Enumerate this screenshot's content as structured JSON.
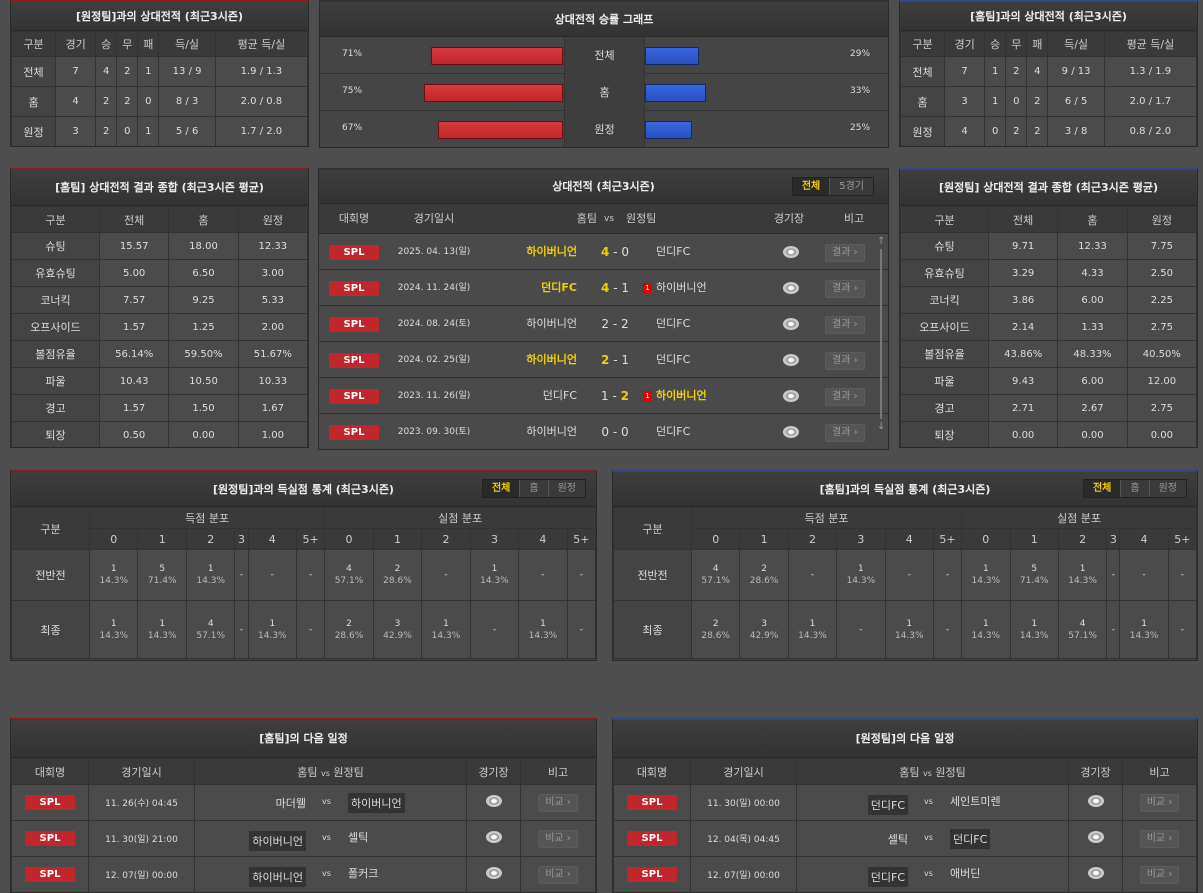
{
  "h2h_left": {
    "title": "[원정팀]과의 상대전적 (최근3시즌)",
    "headers": [
      "구분",
      "경기",
      "승",
      "무",
      "패",
      "득/실",
      "평균 득/실"
    ],
    "rows": [
      [
        "전체",
        "7",
        "4",
        "2",
        "1",
        "13 / 9",
        "1.9 / 1.3"
      ],
      [
        "홈",
        "4",
        "2",
        "2",
        "0",
        "8 / 3",
        "2.0 / 0.8"
      ],
      [
        "원정",
        "3",
        "2",
        "0",
        "1",
        "5 / 6",
        "1.7 / 2.0"
      ]
    ]
  },
  "graph": {
    "title": "상대전적 승률 그래프",
    "home_color": "#c0262b",
    "away_color": "#2a50c0",
    "rows": [
      {
        "label": "전체",
        "home": "71%",
        "away": "29%",
        "home_pct": 71,
        "away_pct": 29
      },
      {
        "label": "홈",
        "home": "75%",
        "away": "33%",
        "home_pct": 75,
        "away_pct": 33
      },
      {
        "label": "원정",
        "home": "67%",
        "away": "25%",
        "home_pct": 67,
        "away_pct": 25
      }
    ]
  },
  "h2h_right": {
    "title": "[홈팀]과의 상대전적 (최근3시즌)",
    "headers": [
      "구분",
      "경기",
      "승",
      "무",
      "패",
      "득/실",
      "평균 득/실"
    ],
    "rows": [
      [
        "전체",
        "7",
        "1",
        "2",
        "4",
        "9 / 13",
        "1.3 / 1.9"
      ],
      [
        "홈",
        "3",
        "1",
        "0",
        "2",
        "6 / 5",
        "2.0 / 1.7"
      ],
      [
        "원정",
        "4",
        "0",
        "2",
        "2",
        "3 / 8",
        "0.8 / 2.0"
      ]
    ]
  },
  "summary_left": {
    "title": "[홈팀] 상대전적 결과 종합 (최근3시즌 평균)",
    "headers": [
      "구분",
      "전체",
      "홈",
      "원정"
    ],
    "rows": [
      [
        "슈팅",
        "15.57",
        "18.00",
        "12.33"
      ],
      [
        "유효슈팅",
        "5.00",
        "6.50",
        "3.00"
      ],
      [
        "코너킥",
        "7.57",
        "9.25",
        "5.33"
      ],
      [
        "오프사이드",
        "1.57",
        "1.25",
        "2.00"
      ],
      [
        "볼점유율",
        "56.14%",
        "59.50%",
        "51.67%"
      ],
      [
        "파울",
        "10.43",
        "10.50",
        "10.33"
      ],
      [
        "경고",
        "1.57",
        "1.50",
        "1.67"
      ],
      [
        "퇴장",
        "0.50",
        "0.00",
        "1.00"
      ]
    ]
  },
  "summary_right": {
    "title": "[원정팀] 상대전적 결과 종합 (최근3시즌 평균)",
    "headers": [
      "구분",
      "전체",
      "홈",
      "원정"
    ],
    "rows": [
      [
        "슈팅",
        "9.71",
        "12.33",
        "7.75"
      ],
      [
        "유효슈팅",
        "3.29",
        "4.33",
        "2.50"
      ],
      [
        "코너킥",
        "3.86",
        "6.00",
        "2.25"
      ],
      [
        "오프사이드",
        "2.14",
        "1.33",
        "2.75"
      ],
      [
        "볼점유율",
        "43.86%",
        "48.33%",
        "40.50%"
      ],
      [
        "파울",
        "9.43",
        "6.00",
        "12.00"
      ],
      [
        "경고",
        "2.71",
        "2.67",
        "2.75"
      ],
      [
        "퇴장",
        "0.00",
        "0.00",
        "0.00"
      ]
    ]
  },
  "matches": {
    "title": "상대전적 (최근3시즌)",
    "tabs": [
      "전체",
      "5경기"
    ],
    "headers": {
      "league": "대회명",
      "date": "경기일시",
      "home": "홈팀",
      "vs": "vs",
      "away": "원정팀",
      "stadium": "경기장",
      "note": "비고"
    },
    "rows": [
      {
        "league": "SPL",
        "date": "2025. 04. 13(일)",
        "home": "하이버니언",
        "hs": "4",
        "dash": "-",
        "as": "0",
        "away": "던디FC",
        "winner": "home",
        "redcard": "",
        "button": "결과"
      },
      {
        "league": "SPL",
        "date": "2024. 11. 24(일)",
        "home": "던디FC",
        "hs": "4",
        "dash": "-",
        "as": "1",
        "away": "하이버니언",
        "winner": "home",
        "redcard": "1",
        "button": "결과"
      },
      {
        "league": "SPL",
        "date": "2024. 08. 24(토)",
        "home": "하이버니언",
        "hs": "2",
        "dash": "-",
        "as": "2",
        "away": "던디FC",
        "winner": "",
        "redcard": "",
        "button": "결과"
      },
      {
        "league": "SPL",
        "date": "2024. 02. 25(일)",
        "home": "하이버니언",
        "hs": "2",
        "dash": "-",
        "as": "1",
        "away": "던디FC",
        "winner": "home",
        "redcard": "",
        "button": "결과"
      },
      {
        "league": "SPL",
        "date": "2023. 11. 26(일)",
        "home": "던디FC",
        "hs": "1",
        "dash": "-",
        "as": "2",
        "away": "하이버니언",
        "winner": "away",
        "redcard": "1",
        "button": "결과"
      },
      {
        "league": "SPL",
        "date": "2023. 09. 30(토)",
        "home": "하이버니언",
        "hs": "0",
        "dash": "-",
        "as": "0",
        "away": "던디FC",
        "winner": "",
        "redcard": "",
        "button": "결과"
      }
    ]
  },
  "goals_left": {
    "title": "[원정팀]과의 득실점 통계 (최근3시즌)",
    "tabs": [
      "전체",
      "홈",
      "원정"
    ],
    "col_label": "구분",
    "groups": [
      "득점 분포",
      "실점 분포"
    ],
    "cols": [
      "0",
      "1",
      "2",
      "3",
      "4",
      "5+",
      "0",
      "1",
      "2",
      "3",
      "4",
      "5+"
    ],
    "rows": [
      {
        "label": "전반전",
        "cells": [
          [
            "1",
            "14.3%"
          ],
          [
            "5",
            "71.4%"
          ],
          [
            "1",
            "14.3%"
          ],
          [
            "-",
            ""
          ],
          [
            "-",
            ""
          ],
          [
            "-",
            ""
          ],
          [
            "4",
            "57.1%"
          ],
          [
            "2",
            "28.6%"
          ],
          [
            "-",
            ""
          ],
          [
            "1",
            "14.3%"
          ],
          [
            "-",
            ""
          ],
          [
            "-",
            ""
          ]
        ]
      },
      {
        "label": "최종",
        "cells": [
          [
            "1",
            "14.3%"
          ],
          [
            "1",
            "14.3%"
          ],
          [
            "4",
            "57.1%"
          ],
          [
            "-",
            ""
          ],
          [
            "1",
            "14.3%"
          ],
          [
            "-",
            ""
          ],
          [
            "2",
            "28.6%"
          ],
          [
            "3",
            "42.9%"
          ],
          [
            "1",
            "14.3%"
          ],
          [
            "-",
            ""
          ],
          [
            "1",
            "14.3%"
          ],
          [
            "-",
            ""
          ]
        ]
      }
    ]
  },
  "goals_right": {
    "title": "[홈팀]과의 득실점 통계 (최근3시즌)",
    "tabs": [
      "전체",
      "홈",
      "원정"
    ],
    "col_label": "구분",
    "groups": [
      "득점 분포",
      "실점 분포"
    ],
    "cols": [
      "0",
      "1",
      "2",
      "3",
      "4",
      "5+",
      "0",
      "1",
      "2",
      "3",
      "4",
      "5+"
    ],
    "rows": [
      {
        "label": "전반전",
        "cells": [
          [
            "4",
            "57.1%"
          ],
          [
            "2",
            "28.6%"
          ],
          [
            "-",
            ""
          ],
          [
            "1",
            "14.3%"
          ],
          [
            "-",
            ""
          ],
          [
            "-",
            ""
          ],
          [
            "1",
            "14.3%"
          ],
          [
            "5",
            "71.4%"
          ],
          [
            "1",
            "14.3%"
          ],
          [
            "-",
            ""
          ],
          [
            "-",
            ""
          ],
          [
            "-",
            ""
          ]
        ]
      },
      {
        "label": "최종",
        "cells": [
          [
            "2",
            "28.6%"
          ],
          [
            "3",
            "42.9%"
          ],
          [
            "1",
            "14.3%"
          ],
          [
            "-",
            ""
          ],
          [
            "1",
            "14.3%"
          ],
          [
            "-",
            ""
          ],
          [
            "1",
            "14.3%"
          ],
          [
            "1",
            "14.3%"
          ],
          [
            "4",
            "57.1%"
          ],
          [
            "-",
            ""
          ],
          [
            "1",
            "14.3%"
          ],
          [
            "-",
            ""
          ]
        ]
      }
    ]
  },
  "sched_left": {
    "title": "[홈팀]의 다음 일정",
    "headers": [
      "대회명",
      "경기일시",
      "홈팀",
      "vs",
      "원정팀",
      "경기장",
      "비고"
    ],
    "rows": [
      {
        "league": "SPL",
        "date": "11. 26(수) 04:45",
        "home": "마더웰",
        "vs": "vs",
        "away": "하이버니언",
        "hl": "away",
        "button": "비교"
      },
      {
        "league": "SPL",
        "date": "11. 30(일) 21:00",
        "home": "하이버니언",
        "vs": "vs",
        "away": "셀틱",
        "hl": "home",
        "button": "비교"
      },
      {
        "league": "SPL",
        "date": "12. 07(일) 00:00",
        "home": "하이버니언",
        "vs": "vs",
        "away": "폴커크",
        "hl": "home",
        "button": "비교"
      }
    ]
  },
  "sched_right": {
    "title": "[원정팀]의 다음 일정",
    "headers": [
      "대회명",
      "경기일시",
      "홈팀",
      "vs",
      "원정팀",
      "경기장",
      "비고"
    ],
    "rows": [
      {
        "league": "SPL",
        "date": "11. 30(일) 00:00",
        "home": "던디FC",
        "vs": "vs",
        "away": "세인트미렌",
        "hl": "home",
        "button": "비교"
      },
      {
        "league": "SPL",
        "date": "12. 04(목) 04:45",
        "home": "셀틱",
        "vs": "vs",
        "away": "던디FC",
        "hl": "away",
        "button": "비교"
      },
      {
        "league": "SPL",
        "date": "12. 07(일) 00:00",
        "home": "던디FC",
        "vs": "vs",
        "away": "애버딘",
        "hl": "home",
        "button": "비교"
      }
    ]
  }
}
